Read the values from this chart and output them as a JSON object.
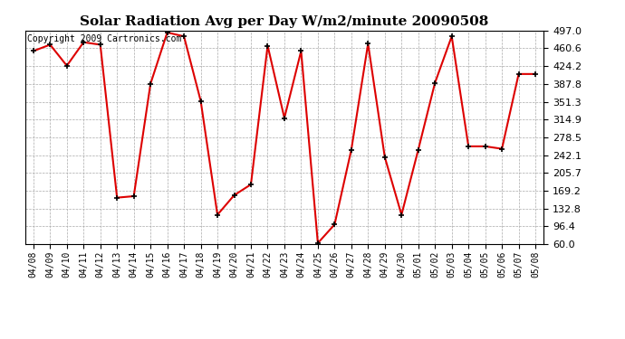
{
  "title": "Solar Radiation Avg per Day W/m2/minute 20090508",
  "copyright": "Copyright 2009 Cartronics.com",
  "labels": [
    "04/08",
    "04/09",
    "04/10",
    "04/11",
    "04/12",
    "04/13",
    "04/14",
    "04/15",
    "04/16",
    "04/17",
    "04/18",
    "04/19",
    "04/20",
    "04/21",
    "04/22",
    "04/23",
    "04/24",
    "04/25",
    "04/26",
    "04/27",
    "04/28",
    "04/29",
    "04/30",
    "05/01",
    "05/02",
    "05/03",
    "05/04",
    "05/05",
    "05/06",
    "05/07",
    "05/08"
  ],
  "values": [
    455,
    468,
    425,
    473,
    468,
    155,
    158,
    388,
    493,
    485,
    353,
    120,
    160,
    182,
    466,
    318,
    455,
    62,
    100,
    253,
    470,
    238,
    120,
    253,
    390,
    485,
    260,
    260,
    255,
    408,
    408
  ],
  "yticks": [
    60.0,
    96.4,
    132.8,
    169.2,
    205.7,
    242.1,
    278.5,
    314.9,
    351.3,
    387.8,
    424.2,
    460.6,
    497.0
  ],
  "ymin": 60.0,
  "ymax": 497.0,
  "line_color": "#dd0000",
  "marker_color": "#000000",
  "bg_color": "#ffffff",
  "grid_color": "#aaaaaa",
  "title_fontsize": 11,
  "copyright_fontsize": 7,
  "tick_fontsize": 7,
  "ytick_fontsize": 8
}
